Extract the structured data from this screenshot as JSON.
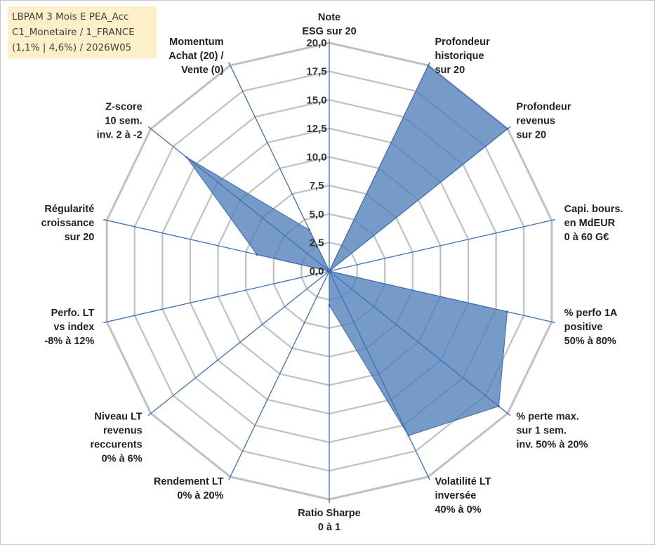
{
  "info_box": {
    "line1": "LBPAM 3 Mois E PEA_Acc",
    "line2": "C1_Monetaire / 1_FRANCE",
    "line3": "(1,1% | 4,6%) / 2026W05"
  },
  "chart_data": {
    "type": "radar",
    "title": "",
    "rmin": 0,
    "rmax": 20,
    "tick_step": 2.5,
    "tick_labels": [
      "0,0",
      "2,5",
      "5,0",
      "7,5",
      "10,0",
      "12,5",
      "15,0",
      "17,5",
      "20,0"
    ],
    "axes": [
      [
        "Note",
        "ESG sur 20"
      ],
      [
        "Profondeur",
        "historique",
        "sur 20"
      ],
      [
        "Profondeur",
        "revenus",
        "sur 20"
      ],
      [
        "Capi. bours.",
        "en MdEUR",
        "0 à 60 G€"
      ],
      [
        "% perfo 1A",
        "positive",
        "50% à 80%"
      ],
      [
        "% perte max.",
        "sur 1 sem.",
        "inv. 50% à 20%"
      ],
      [
        "Volatilité LT",
        "inversée",
        "40% à 0%"
      ],
      [
        "Ratio Sharpe",
        "0 à 1"
      ],
      [
        "Rendement LT",
        "0% à 20%"
      ],
      [
        "Niveau LT",
        "revenus",
        "reccurents",
        "0% à 6%"
      ],
      [
        "Perfo. LT",
        "vs index",
        "-8% à 12%"
      ],
      [
        "Régularité",
        "croissance",
        "sur 20"
      ],
      [
        "Z-score",
        "10 sem.",
        "inv. 2 à -2"
      ],
      [
        "Momentum",
        "Achat (20) /",
        "Vente (0)"
      ]
    ],
    "values": [
      0,
      20,
      20,
      0,
      16,
      19,
      16,
      3,
      0,
      0,
      0,
      6.5,
      16,
      4
    ],
    "grid": true,
    "series_color": "#4f7fb8",
    "grid_color": "#c0c0c0",
    "spoke_color": "#3f6fb5"
  }
}
